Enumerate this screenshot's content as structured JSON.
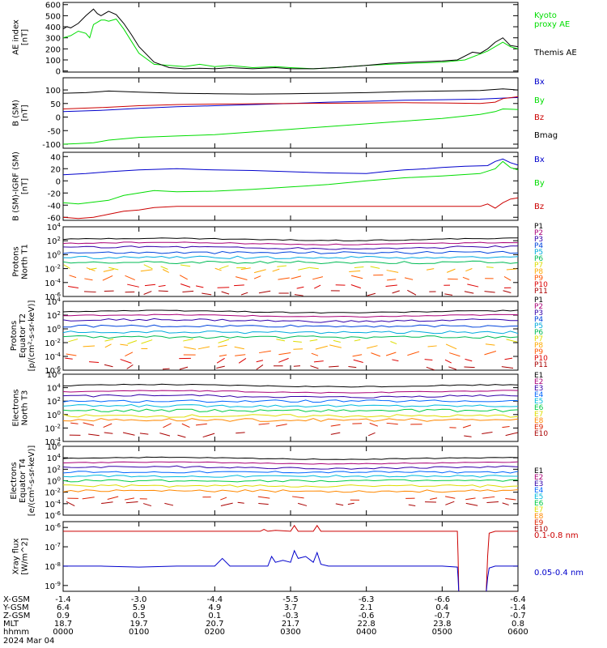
{
  "panels": [
    {
      "ylabel": [
        "AE index",
        "[nT]"
      ],
      "scale": "linear",
      "ylim": [
        -10,
        620
      ],
      "yticks": [
        0,
        100,
        200,
        300,
        400,
        500,
        600
      ],
      "yticklabels": [
        "0",
        "100",
        "200",
        "300",
        "400",
        "500",
        "600"
      ],
      "legend": [
        "Kyoto",
        "proxy AE",
        "Themis AE"
      ],
      "series": [
        {
          "color": "#00dd00",
          "x": [
            0,
            0.05,
            0.1,
            0.2,
            0.3,
            0.35,
            0.4,
            0.45,
            0.5,
            0.55,
            0.6,
            0.7,
            0.8,
            0.9,
            1.0,
            1.2,
            1.4,
            1.6,
            1.8,
            2.0,
            2.2,
            2.5,
            2.8,
            3.0,
            3.3,
            3.6,
            4.0,
            4.3,
            4.6,
            5.0,
            5.3,
            5.6,
            5.8,
            5.9,
            6.0
          ],
          "y": [
            300,
            310,
            320,
            360,
            340,
            300,
            420,
            440,
            460,
            460,
            450,
            470,
            380,
            270,
            160,
            60,
            50,
            40,
            60,
            40,
            50,
            30,
            40,
            30,
            20,
            30,
            50,
            60,
            70,
            80,
            100,
            180,
            260,
            220,
            200
          ]
        },
        {
          "color": "#000000",
          "x": [
            0,
            0.05,
            0.1,
            0.2,
            0.3,
            0.4,
            0.45,
            0.5,
            0.6,
            0.7,
            0.8,
            0.9,
            1.0,
            1.2,
            1.4,
            1.6,
            1.8,
            2.0,
            2.2,
            2.5,
            2.8,
            3.0,
            3.3,
            3.6,
            4.0,
            4.3,
            4.6,
            5.0,
            5.2,
            5.4,
            5.5,
            5.6,
            5.7,
            5.8,
            5.9,
            6.0
          ],
          "y": [
            380,
            400,
            390,
            430,
            500,
            560,
            520,
            500,
            540,
            510,
            430,
            330,
            220,
            80,
            30,
            20,
            25,
            20,
            30,
            20,
            30,
            20,
            20,
            30,
            50,
            70,
            80,
            90,
            100,
            170,
            160,
            200,
            260,
            300,
            230,
            220
          ]
        }
      ]
    },
    {
      "ylabel": [
        "B (SM)",
        "[nT]"
      ],
      "scale": "linear",
      "ylim": [
        -115,
        145
      ],
      "yticks": [
        -100,
        -50,
        0,
        50,
        100
      ],
      "yticklabels": [
        "-100",
        "-50",
        "0",
        "50",
        "100"
      ],
      "legend": [
        "Bx",
        "By",
        "Bz",
        "Bmag"
      ],
      "series": [
        {
          "color": "#0000cc",
          "x": [
            0,
            0.5,
            1.0,
            1.5,
            2.0,
            2.5,
            3.0,
            3.5,
            4.0,
            4.5,
            5.0,
            5.5,
            5.8,
            6.0
          ],
          "y": [
            20,
            25,
            32,
            38,
            42,
            46,
            50,
            55,
            58,
            62,
            64,
            66,
            70,
            72
          ]
        },
        {
          "color": "#00dd00",
          "x": [
            0,
            0.2,
            0.4,
            0.6,
            1.0,
            1.5,
            2.0,
            2.5,
            3.0,
            3.5,
            4.0,
            4.5,
            5.0,
            5.5,
            5.7,
            5.8,
            6.0
          ],
          "y": [
            -100,
            -98,
            -95,
            -85,
            -75,
            -70,
            -65,
            -55,
            -45,
            -35,
            -25,
            -15,
            -5,
            10,
            20,
            30,
            28
          ]
        },
        {
          "color": "#cc0000",
          "x": [
            0,
            0.5,
            1.0,
            1.5,
            2.0,
            2.5,
            3.0,
            3.5,
            4.0,
            4.5,
            5.0,
            5.5,
            5.7,
            5.8,
            6.0
          ],
          "y": [
            30,
            35,
            42,
            46,
            48,
            49,
            50,
            51,
            52,
            53,
            52,
            50,
            55,
            68,
            75
          ]
        },
        {
          "color": "#000000",
          "x": [
            0,
            0.3,
            0.6,
            1.0,
            1.5,
            2.0,
            2.5,
            3.0,
            3.5,
            4.0,
            4.5,
            5.0,
            5.5,
            5.8,
            6.0
          ],
          "y": [
            88,
            90,
            96,
            92,
            88,
            86,
            85,
            86,
            88,
            90,
            94,
            96,
            98,
            104,
            100
          ]
        }
      ]
    },
    {
      "ylabel": [
        "B (SM)-IGRF (SM)",
        "[nT]"
      ],
      "scale": "linear",
      "ylim": [
        -65,
        47
      ],
      "yticks": [
        -60,
        -40,
        -20,
        0,
        20,
        40
      ],
      "yticklabels": [
        "-60",
        "-40",
        "-20",
        "0",
        "20",
        "40"
      ],
      "legend": [
        "Bx",
        "By",
        "Bz"
      ],
      "series": [
        {
          "color": "#0000cc",
          "x": [
            0,
            0.3,
            0.6,
            1.0,
            1.5,
            2.0,
            2.5,
            3.0,
            3.5,
            4.0,
            4.3,
            4.5,
            4.8,
            5.0,
            5.3,
            5.6,
            5.7,
            5.8,
            5.9,
            6.0
          ],
          "y": [
            10,
            12,
            15,
            18,
            20,
            18,
            17,
            15,
            13,
            12,
            16,
            18,
            20,
            22,
            24,
            25,
            32,
            36,
            30,
            26
          ]
        },
        {
          "color": "#00dd00",
          "x": [
            0,
            0.2,
            0.4,
            0.6,
            0.8,
            1.0,
            1.2,
            1.5,
            2.0,
            2.5,
            3.0,
            3.5,
            4.0,
            4.5,
            5.0,
            5.5,
            5.7,
            5.8,
            5.9,
            6.0
          ],
          "y": [
            -36,
            -38,
            -35,
            -32,
            -24,
            -20,
            -16,
            -18,
            -17,
            -14,
            -10,
            -6,
            0,
            5,
            8,
            12,
            20,
            32,
            22,
            18
          ]
        },
        {
          "color": "#cc0000",
          "x": [
            0,
            0.2,
            0.4,
            0.6,
            0.8,
            1.0,
            1.2,
            1.5,
            2.0,
            2.5,
            3.0,
            3.5,
            4.0,
            4.5,
            5.0,
            5.5,
            5.6,
            5.7,
            5.8,
            5.9,
            6.0
          ],
          "y": [
            -60,
            -62,
            -60,
            -55,
            -50,
            -48,
            -44,
            -42,
            -42,
            -42,
            -42,
            -42,
            -42,
            -42,
            -42,
            -42,
            -38,
            -45,
            -36,
            -30,
            -28
          ]
        }
      ]
    },
    {
      "ylabel": [
        "Protons",
        "North T1"
      ],
      "scale": "log",
      "ylim": [
        -6,
        4
      ],
      "yticks": [
        4,
        2,
        0,
        -2,
        -4,
        -6
      ],
      "yticklabels": [
        "10^4",
        "10^2",
        "10^0",
        "10^-2",
        "10^-4",
        "10^-6"
      ],
      "legend": [
        "P1",
        "P2",
        "P3",
        "P4",
        "P5",
        "P6",
        "P7",
        "P8",
        "P9",
        "P10",
        "P11"
      ],
      "channels": [
        2.2,
        1.6,
        1.0,
        0.3,
        -0.4,
        -1.1,
        -1.8,
        -2.2,
        -3.3,
        -4.5,
        -5.5
      ],
      "dashed_from": 6
    },
    {
      "ylabel": [
        "Protons",
        "Equator T2",
        "[p/(cm²-s-sr-keV)]"
      ],
      "scale": "log",
      "ylim": [
        -6,
        4
      ],
      "yticks": [
        4,
        2,
        0,
        -2,
        -4,
        -6
      ],
      "yticklabels": [
        "10^4",
        "10^2",
        "10^0",
        "10^-2",
        "10^-4",
        "10^-6"
      ],
      "legend": [
        "P1",
        "P2",
        "P3",
        "P4",
        "P5",
        "P6",
        "P7",
        "P8",
        "P9",
        "P10",
        "P11"
      ],
      "channels": [
        2.5,
        1.9,
        1.2,
        0.4,
        -0.5,
        -1.2,
        -1.8,
        -2.6,
        -3.6,
        -4.6,
        -5.6
      ],
      "dashed_from": 6
    },
    {
      "ylabel": [
        "Electrons",
        "North T3"
      ],
      "scale": "log",
      "ylim": [
        -4,
        6
      ],
      "yticks": [
        6,
        4,
        2,
        0,
        -2,
        -4
      ],
      "yticklabels": [
        "10^6",
        "10^4",
        "10^2",
        "10^0",
        "10^-2",
        "10^-4"
      ],
      "legend": [
        "E1",
        "E2",
        "E3",
        "E4",
        "E5",
        "E6",
        "E7",
        "E8",
        "E9",
        "E10"
      ],
      "channels": [
        4.3,
        3.4,
        2.7,
        2.0,
        1.3,
        0.6,
        -0.2,
        -0.8,
        -1.6,
        -3.0
      ],
      "dashed_from": 8
    },
    {
      "ylabel": [
        "Electrons",
        "Equator T4",
        "[e/(cm²-s-sr-keV)]"
      ],
      "scale": "log",
      "ylim": [
        -6,
        6
      ],
      "yticks": [
        6,
        4,
        2,
        0,
        -2,
        -4,
        -6
      ],
      "yticklabels": [
        "10^6",
        "10^4",
        "10^2",
        "10^0",
        "10^-2",
        "10^-4",
        "10^-6"
      ],
      "legend": [
        "E1",
        "E2",
        "E3",
        "E4",
        "E5",
        "E6",
        "E7",
        "E8",
        "E9",
        "E10"
      ],
      "channels": [
        3.9,
        3.1,
        2.3,
        1.5,
        0.8,
        0.0,
        -0.9,
        -1.8,
        -3.0,
        -4.0
      ],
      "dashed_from": 8
    },
    {
      "ylabel": [
        "Xray flux",
        "[W/m^2]"
      ],
      "scale": "log",
      "ylim": [
        -9.3,
        -5.7
      ],
      "yticks": [
        -6,
        -7,
        -8,
        -9
      ],
      "yticklabels": [
        "10^-6",
        "10^-7",
        "10^-8",
        "10^-9"
      ],
      "legend": [
        "0.1-0.8 nm",
        "0.05-0.4 nm"
      ],
      "series": [
        {
          "color": "#cc0000",
          "x": [
            0,
            1.0,
            2.0,
            2.6,
            2.65,
            2.7,
            2.8,
            3.0,
            3.05,
            3.1,
            3.3,
            3.35,
            3.4,
            3.5,
            4.0,
            4.5,
            5.0,
            5.2,
            5.21,
            5.22,
            5.58,
            5.6,
            5.62,
            5.7,
            6.0
          ],
          "y": [
            -6.2,
            -6.2,
            -6.2,
            -6.2,
            -6.1,
            -6.2,
            -6.15,
            -6.2,
            -5.9,
            -6.2,
            -6.2,
            -5.9,
            -6.2,
            -6.2,
            -6.2,
            -6.2,
            -6.2,
            -6.2,
            -7.5,
            -9.4,
            -9.4,
            -7.5,
            -6.3,
            -6.2,
            -6.2
          ]
        },
        {
          "color": "#0000cc",
          "x": [
            0,
            0.5,
            1.0,
            1.5,
            2.0,
            2.1,
            2.2,
            2.5,
            2.7,
            2.75,
            2.8,
            2.9,
            3.0,
            3.05,
            3.1,
            3.2,
            3.3,
            3.35,
            3.4,
            3.5,
            4.0,
            4.5,
            5.0,
            5.2,
            5.21,
            5.22,
            5.58,
            5.6,
            5.62,
            5.7,
            6.0
          ],
          "y": [
            -8.0,
            -8.0,
            -8.05,
            -8.0,
            -8.0,
            -7.6,
            -8.0,
            -8.0,
            -8.0,
            -7.5,
            -7.8,
            -7.7,
            -7.8,
            -7.2,
            -7.6,
            -7.5,
            -7.8,
            -7.3,
            -7.9,
            -8.0,
            -8.0,
            -8.0,
            -8.0,
            -8.05,
            -8.6,
            -9.4,
            -9.4,
            -8.6,
            -8.1,
            -8.0,
            -8.0
          ]
        }
      ]
    }
  ],
  "legend_colors": {
    "p0": [
      "#00dd00",
      "#00dd00",
      "#000000"
    ],
    "p1": [
      "#0000cc",
      "#00dd00",
      "#cc0000",
      "#000000"
    ],
    "p2": [
      "#0000cc",
      "#00dd00",
      "#cc0000"
    ],
    "p3": [
      "#000000",
      "#aa0077",
      "#3300aa",
      "#0044dd",
      "#00aadd",
      "#00bb55",
      "#dddd00",
      "#ffaa00",
      "#ff5500",
      "#dd0000",
      "#aa0000"
    ],
    "p4": [
      "#000000",
      "#aa0077",
      "#3300aa",
      "#0044dd",
      "#00aadd",
      "#00bb55",
      "#dddd00",
      "#ffaa00",
      "#ff5500",
      "#dd0000",
      "#aa0000"
    ],
    "p5": [
      "#000000",
      "#aa0077",
      "#3300aa",
      "#0066ff",
      "#00bbdd",
      "#00cc44",
      "#dddd00",
      "#ff8800",
      "#dd2200",
      "#aa0000"
    ],
    "p6": [
      "#000000",
      "#aa0077",
      "#3300aa",
      "#0066ff",
      "#00bbdd",
      "#00cc44",
      "#dddd00",
      "#ff8800",
      "#dd2200",
      "#aa0000"
    ],
    "p7": [
      "#cc0000",
      "#0000cc"
    ]
  },
  "chart_data": {
    "type": "line",
    "xlim": [
      0,
      6
    ],
    "xticks": [
      0,
      1,
      2,
      3,
      4,
      5,
      6
    ],
    "date": "2024 Mar 04",
    "ephemeris": [
      {
        "label": "X-GSM",
        "values": [
          "-1.4",
          "-3.0",
          "-4.4",
          "-5.5",
          "-6.3",
          "-6.6",
          "-6.4"
        ]
      },
      {
        "label": "Y-GSM",
        "values": [
          "6.4",
          "5.9",
          "4.9",
          "3.7",
          "2.1",
          "0.4",
          "-1.4"
        ]
      },
      {
        "label": "Z-GSM",
        "values": [
          "0.9",
          "0.5",
          "0.1",
          "-0.3",
          "-0.6",
          "-0.7",
          "-0.7"
        ]
      },
      {
        "label": "MLT",
        "values": [
          "18.7",
          "19.7",
          "20.7",
          "21.7",
          "22.8",
          "23.8",
          "0.8"
        ]
      },
      {
        "label": "hhmm",
        "values": [
          "0000",
          "0100",
          "0200",
          "0300",
          "0400",
          "0500",
          "0600"
        ]
      }
    ]
  }
}
